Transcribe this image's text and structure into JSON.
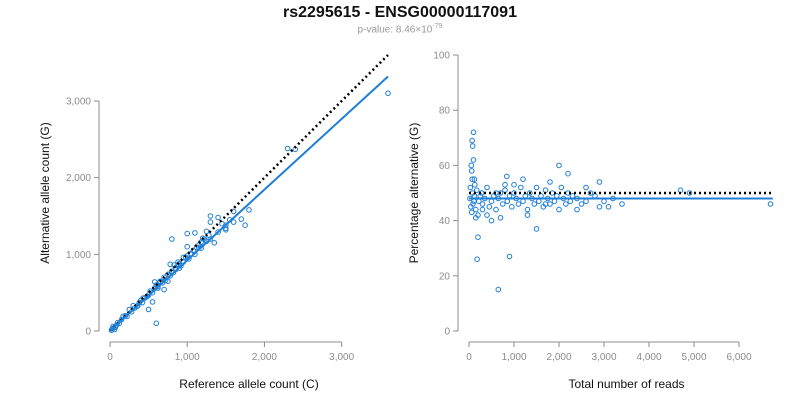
{
  "header": {
    "title": "rs2295615 - ENSG00000117091",
    "pvalue_prefix": "p-value: 8.46×10",
    "pvalue_exponent": "-79"
  },
  "colors": {
    "points": "#1f7fd6",
    "fit": "#1f7fd6",
    "reference": "#000000",
    "axis": "#8c8c8c"
  },
  "chart_data": [
    {
      "type": "scatter",
      "xlabel": "Reference allele count (C)",
      "ylabel": "Alternative allele count (G)",
      "xlim": [
        0,
        3600
      ],
      "ylim": [
        0,
        3600
      ],
      "xticks": [
        0,
        1000,
        2000,
        3000
      ],
      "xtick_labels": [
        "0",
        "1,000",
        "2,000",
        "3,000"
      ],
      "yticks": [
        0,
        1000,
        2000,
        3000
      ],
      "ytick_labels": [
        "0",
        "1,000",
        "2,000",
        "3,000"
      ],
      "fit_line": {
        "x": [
          0,
          3600
        ],
        "y": [
          0,
          3320
        ]
      },
      "reference_line": {
        "x": [
          0,
          3600
        ],
        "y": [
          0,
          3600
        ]
      },
      "points": {
        "x": [
          20,
          30,
          40,
          50,
          60,
          70,
          80,
          100,
          120,
          150,
          170,
          200,
          220,
          250,
          280,
          300,
          320,
          350,
          380,
          400,
          420,
          450,
          480,
          500,
          520,
          550,
          580,
          600,
          620,
          650,
          680,
          700,
          720,
          750,
          780,
          800,
          820,
          850,
          880,
          900,
          920,
          950,
          980,
          1000,
          1020,
          1050,
          1080,
          1100,
          1120,
          1150,
          1180,
          1200,
          1220,
          1250,
          1280,
          1300,
          1350,
          1400,
          1450,
          1500,
          1550,
          1600,
          1700,
          1750,
          1800,
          2300,
          2400,
          3600,
          500,
          600,
          650,
          800,
          900,
          1000,
          1050,
          1100,
          1150,
          1200,
          1300,
          1400,
          1500,
          1600,
          780,
          830,
          1000,
          1250,
          1300,
          1500,
          550,
          750,
          850,
          950,
          620,
          700,
          580,
          430,
          360,
          480,
          880,
          1180
        ],
        "y": [
          10,
          30,
          60,
          40,
          20,
          50,
          70,
          110,
          100,
          150,
          190,
          200,
          190,
          280,
          250,
          330,
          300,
          320,
          370,
          400,
          370,
          430,
          450,
          470,
          520,
          500,
          560,
          600,
          580,
          650,
          630,
          700,
          660,
          740,
          720,
          780,
          760,
          820,
          860,
          880,
          850,
          900,
          960,
          980,
          940,
          1010,
          1050,
          1000,
          1090,
          1120,
          1080,
          1150,
          1200,
          1170,
          1250,
          1200,
          1150,
          1290,
          1400,
          1320,
          1450,
          1560,
          1460,
          1380,
          1580,
          2380,
          2370,
          3100,
          280,
          100,
          640,
          1200,
          820,
          1270,
          1000,
          1280,
          1090,
          1210,
          1500,
          1480,
          1340,
          1420,
          870,
          860,
          1100,
          1300,
          1420,
          1380,
          380,
          650,
          800,
          960,
          560,
          540,
          640,
          430,
          330,
          450,
          900,
          1160
        ]
      }
    },
    {
      "type": "scatter",
      "xlabel": "Total number of reads",
      "ylabel": "Percentage alternative (G)",
      "xlim": [
        0,
        7000
      ],
      "ylim": [
        0,
        100
      ],
      "xticks": [
        0,
        1000,
        2000,
        3000,
        4000,
        5000,
        6000
      ],
      "xtick_labels": [
        "0",
        "1,000",
        "2,000",
        "3,000",
        "4,000",
        "5,000",
        "6,000"
      ],
      "yticks": [
        0,
        20,
        40,
        60,
        80,
        100
      ],
      "ytick_labels": [
        "0",
        "20",
        "40",
        "60",
        "80",
        "100"
      ],
      "fit_line": {
        "x": [
          0,
          6750
        ],
        "y": [
          48,
          48
        ]
      },
      "reference_line": {
        "x": [
          0,
          6750
        ],
        "y": [
          50,
          50
        ]
      },
      "points": {
        "x": [
          20,
          30,
          40,
          50,
          60,
          70,
          80,
          90,
          100,
          110,
          120,
          130,
          150,
          170,
          200,
          220,
          250,
          280,
          300,
          350,
          400,
          450,
          500,
          550,
          600,
          650,
          700,
          750,
          800,
          850,
          900,
          950,
          1000,
          1050,
          1100,
          1150,
          1200,
          1250,
          1300,
          1350,
          1400,
          1450,
          1500,
          1550,
          1600,
          1650,
          1700,
          1750,
          1800,
          1850,
          1900,
          1950,
          2000,
          2050,
          2100,
          2150,
          2200,
          2250,
          2300,
          2400,
          2500,
          2600,
          2700,
          2800,
          2900,
          3000,
          3200,
          3400,
          4700,
          4900,
          6700,
          60,
          80,
          120,
          150,
          180,
          100,
          70,
          200,
          900,
          650,
          840,
          1500,
          2000,
          1200,
          1000,
          800,
          600,
          400,
          300,
          500,
          700,
          1800,
          2200,
          2600,
          2900,
          3100,
          1300,
          1700,
          2400
        ],
        "y": [
          48,
          52,
          45,
          60,
          43,
          55,
          50,
          46,
          72,
          47,
          49,
          53,
          44,
          51,
          42,
          47,
          49,
          50,
          46,
          48,
          52,
          45,
          47,
          49,
          44,
          48,
          50,
          46,
          51,
          47,
          49,
          45,
          50,
          48,
          46,
          52,
          47,
          49,
          44,
          50,
          48,
          46,
          52,
          47,
          49,
          45,
          51,
          48,
          46,
          50,
          47,
          49,
          44,
          52,
          48,
          46,
          50,
          47,
          49,
          48,
          46,
          47,
          50,
          49,
          45,
          47,
          48,
          46,
          51,
          50,
          46,
          58,
          67,
          55,
          41,
          26,
          62,
          69,
          34,
          27,
          15,
          56,
          37,
          60,
          55,
          53,
          53,
          50,
          42,
          44,
          40,
          41,
          54,
          57,
          52,
          54,
          45,
          42,
          46,
          44
        ]
      }
    }
  ]
}
